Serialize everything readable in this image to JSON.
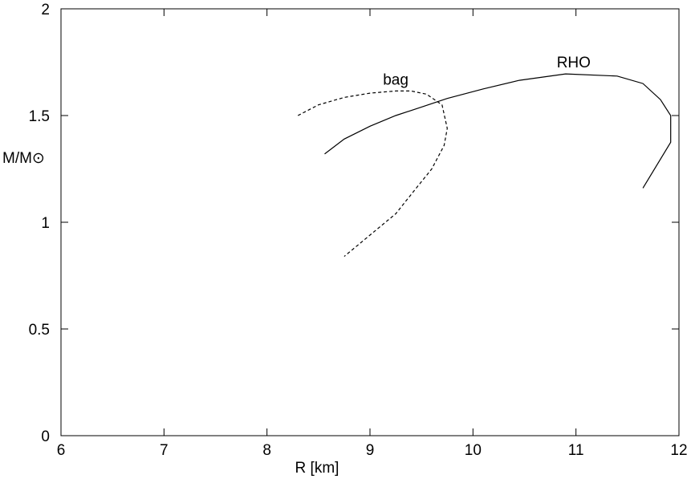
{
  "chart_data": {
    "type": "line",
    "title": "",
    "xlabel": "R [km]",
    "ylabel": "M/M⊙",
    "xlim": [
      6,
      12
    ],
    "ylim": [
      0,
      2
    ],
    "xticks": [
      6,
      7,
      8,
      9,
      10,
      11,
      12
    ],
    "xtick_labels": [
      "6",
      "7",
      "8",
      "9",
      "10",
      "11",
      "12"
    ],
    "yticks": [
      0,
      0.5,
      1,
      1.5,
      2
    ],
    "ytick_labels": [
      "0",
      "0.5",
      "1",
      "1.5",
      "2"
    ],
    "grid": false,
    "series": [
      {
        "name": "RHO",
        "line_style": "solid",
        "color": "#000000",
        "x": [
          8.56,
          8.75,
          9.0,
          9.25,
          9.5,
          9.75,
          10.1,
          10.45,
          10.9,
          11.4,
          11.65,
          11.82,
          11.92,
          11.92,
          11.65
        ],
        "y": [
          1.32,
          1.39,
          1.45,
          1.5,
          1.54,
          1.58,
          1.625,
          1.665,
          1.695,
          1.685,
          1.65,
          1.575,
          1.5,
          1.375,
          1.16
        ]
      },
      {
        "name": "bag",
        "line_style": "dashed",
        "color": "#000000",
        "x": [
          8.3,
          8.5,
          8.75,
          9.0,
          9.25,
          9.4,
          9.55,
          9.7,
          9.75,
          9.72,
          9.6,
          9.45,
          9.25,
          9.0,
          8.75
        ],
        "y": [
          1.5,
          1.55,
          1.585,
          1.605,
          1.615,
          1.615,
          1.6,
          1.55,
          1.44,
          1.36,
          1.25,
          1.16,
          1.04,
          0.94,
          0.84
        ]
      }
    ]
  }
}
